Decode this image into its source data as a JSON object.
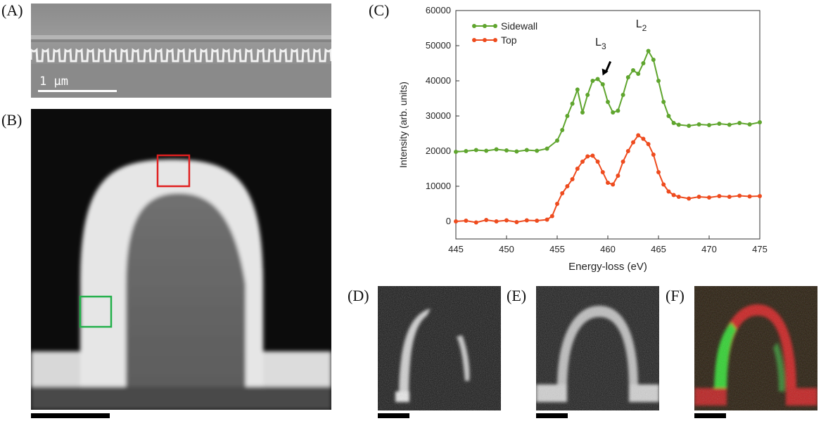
{
  "panels": {
    "a": {
      "label": "(A)",
      "scalebar_text": "1 μm"
    },
    "b": {
      "label": "(B)"
    },
    "c": {
      "label": "(C)"
    },
    "d": {
      "label": "(D)"
    },
    "e": {
      "label": "(E)"
    },
    "f": {
      "label": "(F)"
    }
  },
  "colors": {
    "sidewall": "#5fa52e",
    "top": "#ee4b1e",
    "roi_top": "#e02020",
    "roi_sidewall": "#22b04a"
  },
  "chart_data": {
    "type": "line",
    "xlabel": "Energy-loss (eV)",
    "ylabel": "Intensity (arb. units)",
    "xlim": [
      445,
      475
    ],
    "ylim": [
      -5000,
      60000
    ],
    "xticks": [
      445,
      450,
      455,
      460,
      465,
      470,
      475
    ],
    "yticks": [
      0,
      10000,
      20000,
      30000,
      40000,
      50000,
      60000
    ],
    "legend_position": "top-left",
    "grid": false,
    "annotations": [
      {
        "text": "L",
        "sub": "3",
        "x": 459.3,
        "y": 50000
      },
      {
        "text": "L",
        "sub": "2",
        "x": 463.3,
        "y": 55200
      }
    ],
    "arrow": {
      "x": 459.7,
      "y": 41500
    },
    "series": [
      {
        "name": "Sidewall",
        "x": [
          445,
          446,
          447,
          448,
          449,
          450,
          451,
          452,
          453,
          454,
          455,
          455.5,
          456,
          456.5,
          457,
          457.5,
          458,
          458.5,
          459,
          459.5,
          460,
          460.5,
          461,
          461.5,
          462,
          462.5,
          463,
          463.5,
          464,
          464.5,
          465,
          465.5,
          466,
          466.5,
          467,
          468,
          469,
          470,
          471,
          472,
          473,
          474,
          475
        ],
        "values": [
          19800,
          20000,
          20300,
          20100,
          20500,
          20200,
          19900,
          20300,
          20100,
          20700,
          23000,
          26000,
          30000,
          33500,
          37500,
          31000,
          36000,
          40000,
          40500,
          39000,
          34000,
          31000,
          31500,
          36000,
          41000,
          43000,
          42000,
          45000,
          48500,
          46000,
          40000,
          34000,
          30000,
          28000,
          27500,
          27200,
          27600,
          27400,
          27800,
          27500,
          28000,
          27600,
          28200
        ]
      },
      {
        "name": "Top",
        "x": [
          445,
          446,
          447,
          448,
          449,
          450,
          451,
          452,
          453,
          454,
          454.5,
          455,
          455.5,
          456,
          456.5,
          457,
          457.5,
          458,
          458.5,
          459,
          459.5,
          460,
          460.5,
          461,
          461.5,
          462,
          462.5,
          463,
          463.5,
          464,
          464.5,
          465,
          465.5,
          466,
          466.5,
          467,
          468,
          469,
          470,
          471,
          472,
          473,
          474,
          475
        ],
        "values": [
          0,
          200,
          -300,
          400,
          0,
          300,
          -200,
          300,
          200,
          500,
          1500,
          5000,
          8000,
          10000,
          12000,
          15000,
          17000,
          18500,
          18700,
          17000,
          14000,
          11000,
          10500,
          13000,
          17000,
          20000,
          22500,
          24500,
          23500,
          22000,
          19000,
          14000,
          10500,
          8500,
          7500,
          7000,
          6500,
          7000,
          6800,
          7200,
          7000,
          7300,
          7100,
          7200
        ]
      }
    ]
  }
}
